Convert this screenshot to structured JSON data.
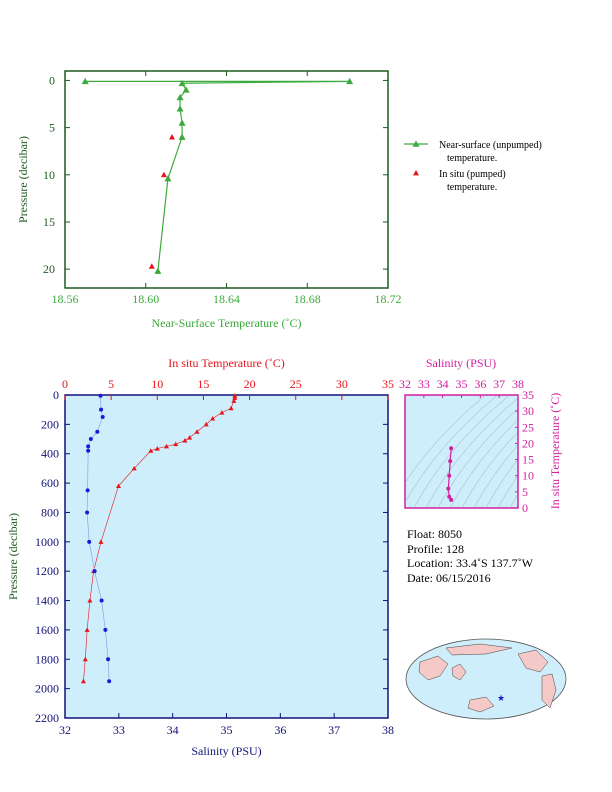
{
  "colors": {
    "green": "#3daa3d",
    "red": "#e8141c",
    "blue": "#1a1ad8",
    "magenta": "#d21ea0",
    "navy": "#12127a",
    "darkgreen": "#1e5a1e",
    "plot_bg": "#cdeefa",
    "land": "#f6c9c9",
    "ocean": "#cdeefa"
  },
  "top_chart": {
    "type": "line",
    "xlabel": "Near-Surface Temperature (˚C)",
    "ylabel": "Pressure (decibar)",
    "xlim": [
      18.56,
      18.72
    ],
    "ylim": [
      22,
      -1
    ],
    "x_ticks": [
      "18.56",
      "18.60",
      "18.64",
      "18.68",
      "18.72"
    ],
    "y_ticks": [
      "0",
      "5",
      "10",
      "15",
      "20"
    ],
    "legend": {
      "unpumped_line1": "Near-surface (unpumped)",
      "unpumped_line2": "temperature.",
      "pumped_line1": "In situ (pumped)",
      "pumped_line2": "temperature."
    }
  },
  "bottom_chart": {
    "type": "scatter",
    "top_axis_label": "In situ Temperature (˚C)",
    "bottom_axis_label": "Salinity (PSU)",
    "ylabel": "Pressure (decibar)",
    "temp_ticks": [
      "0",
      "5",
      "10",
      "15",
      "20",
      "25",
      "30",
      "35"
    ],
    "sal_ticks": [
      "32",
      "33",
      "34",
      "35",
      "36",
      "37",
      "38"
    ],
    "pres_ticks": [
      "0",
      "200",
      "400",
      "600",
      "800",
      "1000",
      "1200",
      "1400",
      "1600",
      "1800",
      "2000",
      "2200"
    ]
  },
  "ts_chart": {
    "type": "scatter",
    "xlabel": "Salinity (PSU)",
    "ylabel": "In situ Temperature (˚C)",
    "x_ticks": [
      "32",
      "33",
      "34",
      "35",
      "36",
      "37",
      "38"
    ],
    "y_ticks": [
      "0",
      "5",
      "10",
      "15",
      "20",
      "25",
      "30",
      "35"
    ]
  },
  "info": {
    "float": "Float:  8050",
    "profile": "Profile:  128",
    "location": "Location:  33.4˚S  137.7˚W",
    "date": "Date:  06/15/2016"
  },
  "chart_data": [
    {
      "type": "line",
      "series": [
        {
          "name": "Near-surface (unpumped) temperature.",
          "points": [
            [
              18.57,
              0.1
            ],
            [
              18.701,
              0.1
            ],
            [
              18.618,
              0.3
            ],
            [
              18.62,
              1.0
            ],
            [
              18.617,
              1.8
            ],
            [
              18.617,
              3.0
            ],
            [
              18.618,
              4.5
            ],
            [
              18.618,
              6.0
            ],
            [
              18.611,
              10.4
            ],
            [
              18.606,
              20.2
            ]
          ]
        },
        {
          "name": "In situ (pumped) temperature.",
          "points": [
            [
              18.613,
              6.0
            ],
            [
              18.609,
              10.0
            ],
            [
              18.603,
              19.7
            ]
          ]
        }
      ]
    },
    {
      "type": "scatter",
      "temperature_profile": [
        [
          18.4,
          5
        ],
        [
          18.4,
          20
        ],
        [
          18.3,
          40
        ],
        [
          18.0,
          90
        ],
        [
          17.0,
          120
        ],
        [
          16.0,
          160
        ],
        [
          15.3,
          200
        ],
        [
          14.3,
          250
        ],
        [
          13.5,
          290
        ],
        [
          13.0,
          310
        ],
        [
          12.0,
          335
        ],
        [
          11.0,
          350
        ],
        [
          10.0,
          365
        ],
        [
          9.3,
          380
        ],
        [
          7.5,
          500
        ],
        [
          5.8,
          620
        ],
        [
          3.9,
          1000
        ],
        [
          3.1,
          1200
        ],
        [
          2.7,
          1400
        ],
        [
          2.4,
          1600
        ],
        [
          2.2,
          1800
        ],
        [
          2.0,
          1950
        ]
      ],
      "salinity_profile": [
        [
          32.66,
          5
        ],
        [
          32.67,
          100
        ],
        [
          32.7,
          150
        ],
        [
          32.6,
          250
        ],
        [
          32.48,
          300
        ],
        [
          32.43,
          350
        ],
        [
          32.43,
          380
        ],
        [
          32.42,
          650
        ],
        [
          32.41,
          800
        ],
        [
          32.45,
          1000
        ],
        [
          32.55,
          1200
        ],
        [
          32.68,
          1400
        ],
        [
          32.75,
          1600
        ],
        [
          32.8,
          1800
        ],
        [
          32.82,
          1950
        ]
      ]
    },
    {
      "type": "scatter",
      "ts_points": [
        [
          34.45,
          18.5
        ],
        [
          34.4,
          14.5
        ],
        [
          34.35,
          10.0
        ],
        [
          34.3,
          6.0
        ],
        [
          34.35,
          3.5
        ],
        [
          34.45,
          2.5
        ]
      ]
    }
  ]
}
